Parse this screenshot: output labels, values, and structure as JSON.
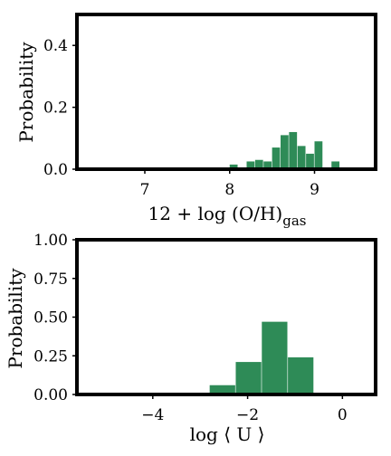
{
  "chart_data": [
    {
      "type": "bar",
      "xlabel_main": "12 + log (O/H)",
      "xlabel_sub": "gas",
      "ylabel": "Probability",
      "xlim": [
        6.2,
        9.72
      ],
      "ylim": [
        0,
        0.5
      ],
      "xticks": [
        7,
        8,
        9
      ],
      "xtick_labels": [
        "7",
        "8",
        "9"
      ],
      "yticks": [
        0,
        0.2,
        0.4
      ],
      "ytick_labels": [
        "0.0",
        "0.2",
        "0.4"
      ],
      "bar_color": "#2e8b57",
      "bins": [
        {
          "x0": 7.7,
          "x1": 7.8,
          "y": 0.005
        },
        {
          "x0": 7.8,
          "x1": 7.9,
          "y": 0.005
        },
        {
          "x0": 7.9,
          "x1": 8.0,
          "y": 0.0
        },
        {
          "x0": 8.0,
          "x1": 8.1,
          "y": 0.015
        },
        {
          "x0": 8.1,
          "x1": 8.2,
          "y": 0.005
        },
        {
          "x0": 8.2,
          "x1": 8.3,
          "y": 0.025
        },
        {
          "x0": 8.3,
          "x1": 8.4,
          "y": 0.03
        },
        {
          "x0": 8.4,
          "x1": 8.5,
          "y": 0.025
        },
        {
          "x0": 8.5,
          "x1": 8.6,
          "y": 0.07
        },
        {
          "x0": 8.6,
          "x1": 8.7,
          "y": 0.11
        },
        {
          "x0": 8.7,
          "x1": 8.8,
          "y": 0.12
        },
        {
          "x0": 8.8,
          "x1": 8.9,
          "y": 0.075
        },
        {
          "x0": 8.9,
          "x1": 9.0,
          "y": 0.05
        },
        {
          "x0": 9.0,
          "x1": 9.1,
          "y": 0.09
        },
        {
          "x0": 9.1,
          "x1": 9.2,
          "y": 0.0
        },
        {
          "x0": 9.2,
          "x1": 9.3,
          "y": 0.025
        }
      ]
    },
    {
      "type": "bar",
      "xlabel": "log ⟨ U ⟩",
      "ylabel": "Probability",
      "xlim": [
        -5.6,
        0.7
      ],
      "ylim": [
        0,
        1.0
      ],
      "xticks": [
        -4,
        -2,
        0
      ],
      "xtick_labels": [
        "−4",
        "−2",
        "0"
      ],
      "yticks": [
        0,
        0.25,
        0.5,
        0.75,
        1.0
      ],
      "ytick_labels": [
        "0.00",
        "0.25",
        "0.50",
        "0.75",
        "1.00"
      ],
      "bar_color": "#2e8b57",
      "bins": [
        {
          "x0": -3.35,
          "x1": -2.8,
          "y": 0.01
        },
        {
          "x0": -2.8,
          "x1": -2.25,
          "y": 0.06
        },
        {
          "x0": -2.25,
          "x1": -1.7,
          "y": 0.21
        },
        {
          "x0": -1.7,
          "x1": -1.15,
          "y": 0.47
        },
        {
          "x0": -1.15,
          "x1": -0.6,
          "y": 0.24
        }
      ]
    }
  ]
}
